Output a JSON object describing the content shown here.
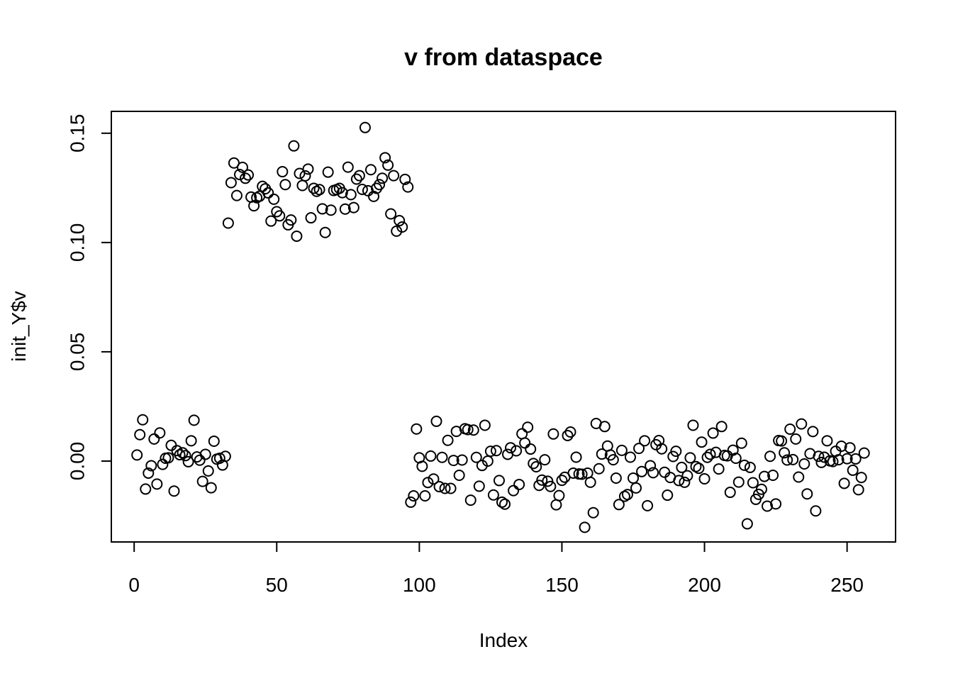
{
  "chart_data": {
    "type": "scatter",
    "title": "v from dataspace",
    "xlabel": "Index",
    "ylabel": "init_Y$v",
    "xlim": [
      -8,
      267
    ],
    "ylim": [
      -0.037,
      0.16
    ],
    "xticks": [
      0,
      50,
      100,
      150,
      200,
      250
    ],
    "xtick_labels": [
      "0",
      "50",
      "100",
      "150",
      "200",
      "250"
    ],
    "yticks": [
      0.0,
      0.05,
      0.1,
      0.15
    ],
    "ytick_labels": [
      "0.00",
      "0.05",
      "0.10",
      "0.15"
    ],
    "grid": false,
    "legend": "none",
    "marker": "open-circle",
    "x": [
      1,
      2,
      3,
      4,
      5,
      6,
      7,
      8,
      9,
      10,
      11,
      12,
      13,
      14,
      15,
      16,
      17,
      18,
      19,
      20,
      21,
      22,
      23,
      24,
      25,
      26,
      27,
      28,
      29,
      30,
      31,
      32,
      33,
      34,
      35,
      36,
      37,
      38,
      39,
      40,
      41,
      42,
      43,
      44,
      45,
      46,
      47,
      48,
      49,
      50,
      51,
      52,
      53,
      54,
      55,
      56,
      57,
      58,
      59,
      60,
      61,
      62,
      63,
      64,
      65,
      66,
      67,
      68,
      69,
      70,
      71,
      72,
      73,
      74,
      75,
      76,
      77,
      78,
      79,
      80,
      81,
      82,
      83,
      84,
      85,
      86,
      87,
      88,
      89,
      90,
      91,
      92,
      93,
      94,
      95,
      96,
      97,
      98,
      99,
      100,
      101,
      102,
      103,
      104,
      105,
      106,
      107,
      108,
      109,
      110,
      111,
      112,
      113,
      114,
      115,
      116,
      117,
      118,
      119,
      120,
      121,
      122,
      123,
      124,
      125,
      126,
      127,
      128,
      129,
      130,
      131,
      132,
      133,
      134,
      135,
      136,
      137,
      138,
      139,
      140,
      141,
      142,
      143,
      144,
      145,
      146,
      147,
      148,
      149,
      150,
      151,
      152,
      153,
      154,
      155,
      156,
      157,
      158,
      159,
      160,
      161,
      162,
      163,
      164,
      165,
      166,
      167,
      168,
      169,
      170,
      171,
      172,
      173,
      174,
      175,
      176,
      177,
      178,
      179,
      180,
      181,
      182,
      183,
      184,
      185,
      186,
      187,
      188,
      189,
      190,
      191,
      192,
      193,
      194,
      195,
      196,
      197,
      198,
      199,
      200,
      201,
      202,
      203,
      204,
      205,
      206,
      207,
      208,
      209,
      210,
      211,
      212,
      213,
      214,
      215,
      216,
      217,
      218,
      219,
      220,
      221,
      222,
      223,
      224,
      225,
      226,
      227,
      228,
      229,
      230,
      231,
      232,
      233,
      234,
      235,
      236,
      237,
      238,
      239,
      240,
      241,
      242,
      243,
      244,
      245,
      246,
      247,
      248,
      249,
      250,
      251,
      252,
      253,
      254,
      255,
      256
    ],
    "y": [
      0.0028,
      0.0121,
      0.0189,
      -0.0128,
      -0.0055,
      -0.0021,
      0.0101,
      -0.0105,
      0.0129,
      -0.0015,
      0.0013,
      0.0015,
      0.0072,
      -0.0137,
      0.0048,
      0.0029,
      0.0038,
      0.0025,
      -0.0003,
      0.0093,
      0.0187,
      0.0019,
      0.0004,
      -0.0093,
      0.0031,
      -0.0045,
      -0.0122,
      0.0091,
      0.0009,
      0.0013,
      -0.0018,
      0.0022,
      0.1089,
      0.1274,
      0.1364,
      0.1215,
      0.1311,
      0.1344,
      0.1294,
      0.1309,
      0.1208,
      0.1168,
      0.1205,
      0.1212,
      0.1257,
      0.1246,
      0.1227,
      0.1098,
      0.1198,
      0.1141,
      0.1122,
      0.1324,
      0.1265,
      0.1081,
      0.1103,
      0.1442,
      0.1029,
      0.1316,
      0.1261,
      0.1305,
      0.1336,
      0.1113,
      0.1248,
      0.1234,
      0.1242,
      0.1154,
      0.1046,
      0.1322,
      0.1148,
      0.1238,
      0.1242,
      0.1248,
      0.1228,
      0.1153,
      0.1345,
      0.1219,
      0.116,
      0.129,
      0.1306,
      0.1243,
      0.1526,
      0.1237,
      0.1333,
      0.1211,
      0.1248,
      0.1265,
      0.1294,
      0.1388,
      0.1354,
      0.1131,
      0.1306,
      0.1052,
      0.11,
      0.1071,
      0.1289,
      0.1254,
      -0.0188,
      -0.0159,
      0.0147,
      0.0015,
      -0.0024,
      -0.0159,
      -0.0098,
      0.0023,
      -0.0082,
      0.0182,
      -0.0117,
      0.0017,
      -0.0125,
      0.0095,
      -0.0125,
      0.0003,
      0.0136,
      -0.0065,
      0.0005,
      0.0148,
      0.0144,
      -0.0179,
      0.0142,
      0.0017,
      -0.0115,
      -0.002,
      0.0164,
      0.0,
      0.0045,
      -0.0155,
      0.0048,
      -0.0089,
      -0.0188,
      -0.0197,
      0.0031,
      0.0061,
      -0.0135,
      0.0047,
      -0.0107,
      0.0125,
      0.0083,
      0.0155,
      0.0055,
      -0.0011,
      -0.0026,
      -0.0111,
      -0.0087,
      0.0006,
      -0.0092,
      -0.0116,
      0.0124,
      -0.02,
      -0.0158,
      -0.0088,
      -0.0074,
      0.0117,
      0.0133,
      -0.0055,
      0.0018,
      -0.0059,
      -0.006,
      -0.0303,
      -0.0055,
      -0.0097,
      -0.0236,
      0.0172,
      -0.0035,
      0.0032,
      0.0158,
      0.0069,
      0.0028,
      0.0006,
      -0.0078,
      -0.0199,
      0.0049,
      -0.0161,
      -0.0153,
      0.0018,
      -0.0078,
      -0.0123,
      0.0058,
      -0.0048,
      0.0093,
      -0.0204,
      -0.0021,
      -0.0053,
      0.0075,
      0.0094,
      0.0056,
      -0.0051,
      -0.0156,
      -0.0075,
      0.0021,
      0.0045,
      -0.0089,
      -0.0029,
      -0.0097,
      -0.0067,
      0.0015,
      0.0164,
      -0.0025,
      -0.0033,
      0.0087,
      -0.0081,
      0.0017,
      0.0031,
      0.0128,
      0.004,
      -0.0036,
      0.0158,
      0.0026,
      0.0024,
      -0.0143,
      0.005,
      0.0013,
      -0.0096,
      0.0082,
      -0.0019,
      -0.0287,
      -0.0029,
      -0.0099,
      -0.0175,
      -0.0152,
      -0.0129,
      -0.007,
      -0.0206,
      0.0022,
      -0.0065,
      -0.0196,
      0.0094,
      0.0092,
      0.0038,
      0.0005,
      0.0146,
      0.0007,
      0.0101,
      -0.0073,
      0.017,
      -0.0013,
      -0.015,
      0.0034,
      0.0135,
      -0.0228,
      0.0022,
      -0.0006,
      0.0018,
      0.0093,
      0.0001,
      -0.0002,
      0.0045,
      0.0006,
      0.0068,
      -0.0102,
      0.0011,
      0.0061,
      -0.0042,
      0.001,
      -0.0131,
      -0.0075,
      0.0037
    ]
  }
}
